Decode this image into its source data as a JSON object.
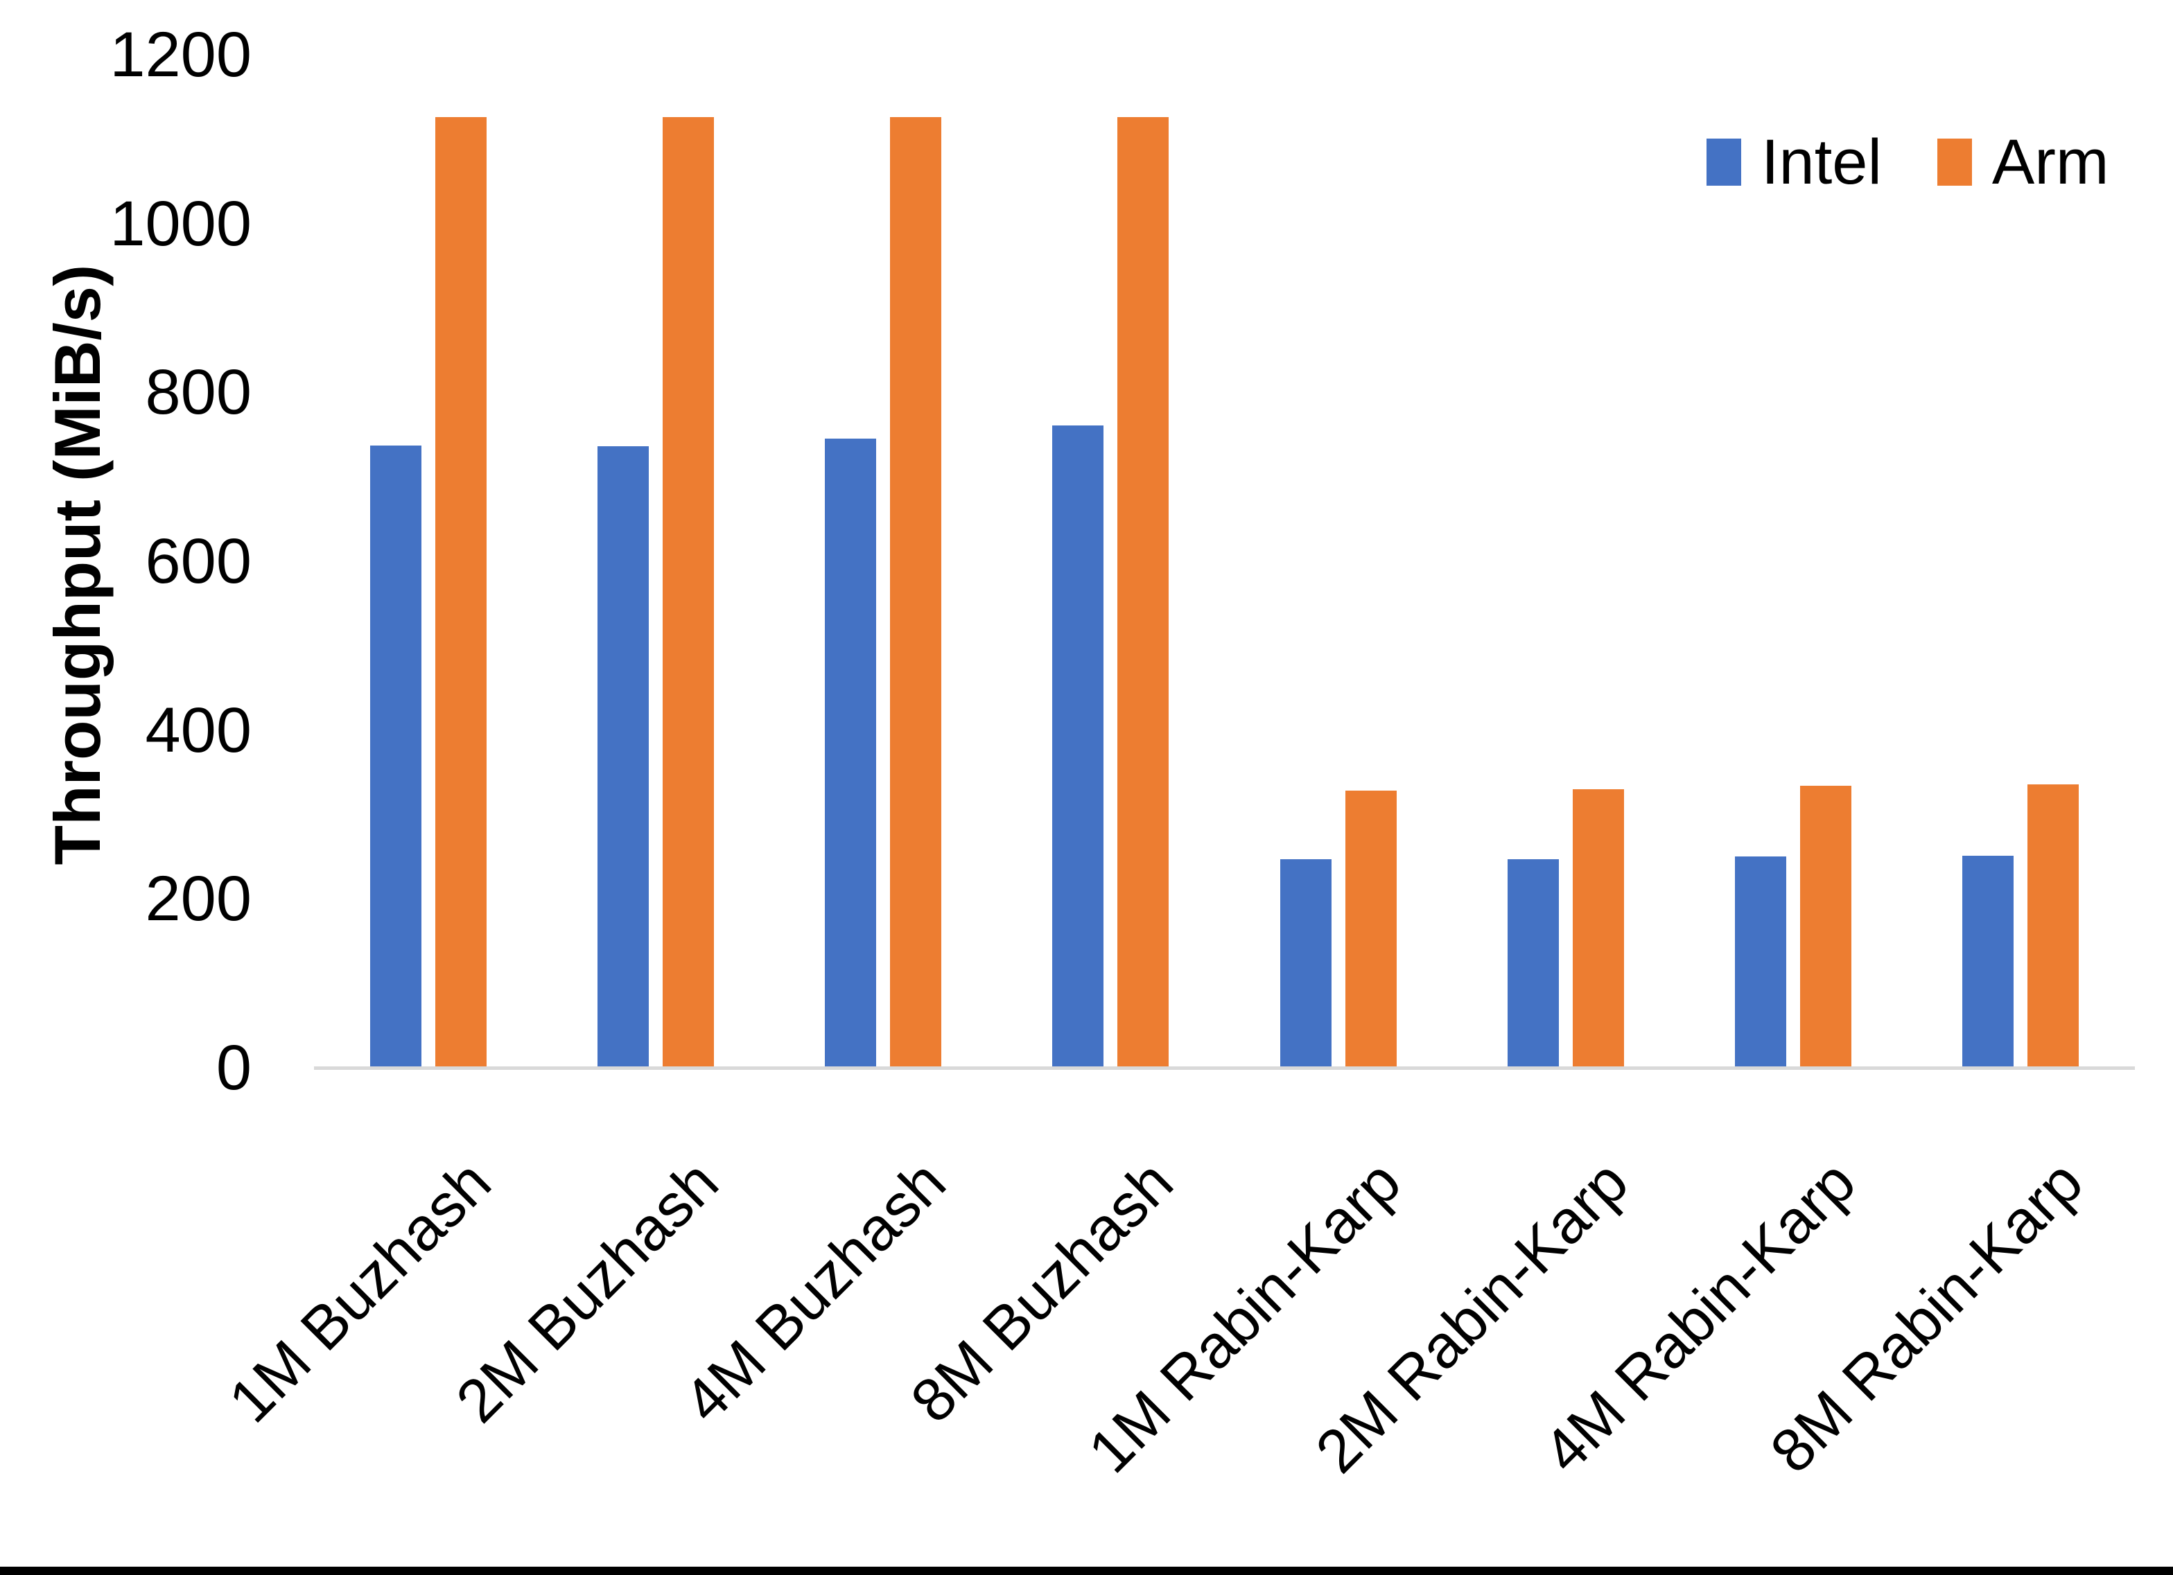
{
  "chart_data": {
    "type": "bar",
    "title": "",
    "xlabel": "",
    "ylabel": "Throughput (MiB/s)",
    "ylim": [
      0,
      1200
    ],
    "yticks": [
      0,
      200,
      400,
      600,
      800,
      1000,
      1200
    ],
    "grid": false,
    "legend_position": "top-right",
    "categories": [
      "1M Buzhash",
      "2M Buzhash",
      "4M Buzhash",
      "8M Buzhash",
      "1M Rabin-Karp",
      "2M Rabin-Karp",
      "4M Rabin-Karp",
      "8M Rabin-Karp"
    ],
    "series": [
      {
        "name": "Intel",
        "color": "#4472C4",
        "values": [
          737,
          736,
          745,
          761,
          247,
          247,
          250,
          251
        ]
      },
      {
        "name": "Arm",
        "color": "#ED7D31",
        "values": [
          1126,
          1126,
          1126,
          1126,
          328,
          330,
          334,
          336
        ]
      }
    ]
  },
  "colors": {
    "background": "#FFFFFF",
    "axis_line": "#D9D9D9",
    "text": "#000000",
    "bottom_border": "#000000"
  }
}
